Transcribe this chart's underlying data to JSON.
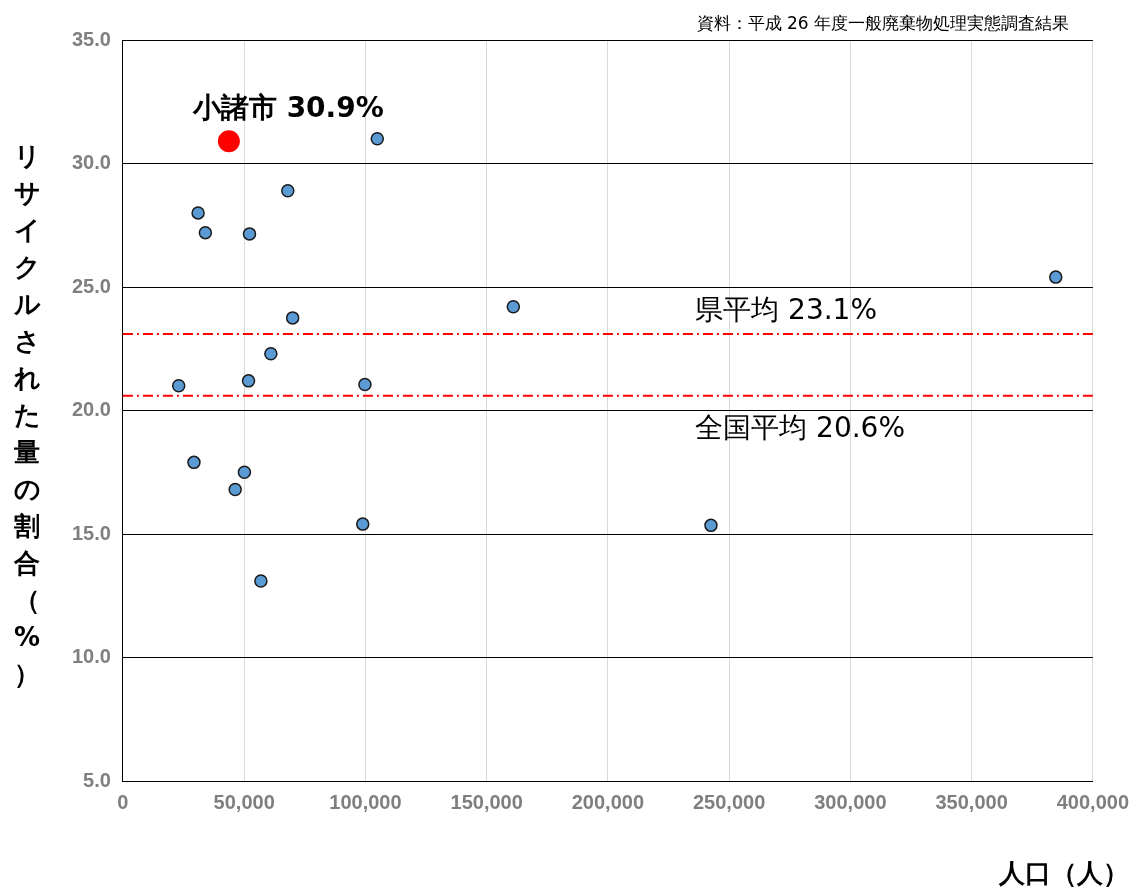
{
  "chart_data": {
    "type": "scatter",
    "xlabel": "人口（人）",
    "ylabel": "リサイクルされた量の割合（%）",
    "annotations": [
      {
        "text": "小諸市 30.9%",
        "x": 43700,
        "y": 30.9
      },
      "資料：平成 26 年度一般廃棄物処理実態調査結果"
    ],
    "series": [
      {
        "color": "#5b9bd5",
        "x": [
          104900,
          68000,
          31000,
          34000,
          52200,
          384700,
          161000,
          70000,
          61000,
          23000,
          51800,
          99800,
          29300,
          50100,
          46300,
          98900,
          242500,
          56900
        ],
        "values": [
          31.0,
          28.9,
          28.0,
          27.2,
          27.15,
          25.4,
          24.2,
          23.75,
          22.3,
          21.0,
          21.2,
          21.05,
          17.9,
          17.5,
          16.8,
          15.4,
          15.35,
          13.1
        ]
      },
      {
        "color": "#ff0000",
        "x": [
          43700
        ],
        "values": [
          30.9
        ]
      }
    ],
    "ref_lines": [
      {
        "axis": "y",
        "value": 23.1,
        "label": "県平均 23.1%",
        "color": "#ff0000",
        "line_style": "dashdot"
      },
      {
        "axis": "y",
        "value": 20.6,
        "label": "全国平均 20.6%",
        "color": "#ff0000",
        "line_style": "dashdot"
      }
    ],
    "xlim": [
      0,
      400000
    ],
    "xticks": [
      0,
      {
        "value": 50000,
        "label": "50,000"
      },
      {
        "value": 100000,
        "label": "100,000"
      },
      {
        "value": 150000,
        "label": "150,000"
      },
      {
        "value": 200000,
        "label": "200,000"
      },
      {
        "value": 250000,
        "label": "250,000"
      },
      {
        "value": 300000,
        "label": "300,000"
      },
      {
        "value": 350000,
        "label": "350,000"
      },
      {
        "value": 400000,
        "label": "400,000"
      }
    ],
    "ylim": [
      5,
      35
    ],
    "yticks": [
      {
        "value": 5,
        "label": "5.0"
      },
      {
        "value": 10,
        "label": "10.0"
      },
      {
        "value": 15,
        "label": "15.0"
      },
      {
        "value": 20,
        "label": "20.0"
      },
      {
        "value": 25,
        "label": "25.0"
      },
      {
        "value": 30,
        "label": "30.0"
      },
      {
        "value": 35,
        "label": "35.0"
      }
    ],
    "grid": true,
    "legend": false,
    "marker": "circle"
  }
}
